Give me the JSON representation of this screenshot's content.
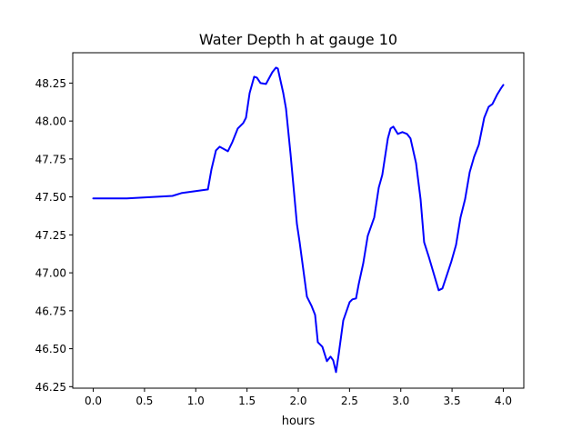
{
  "chart_data": {
    "type": "line",
    "title": "Water Depth h at gauge 10",
    "xlabel": "hours",
    "ylabel": "",
    "xlim": [
      -0.2,
      4.2
    ],
    "ylim": [
      46.24,
      48.45
    ],
    "grid": false,
    "xticks": [
      0.0,
      0.5,
      1.0,
      1.5,
      2.0,
      2.5,
      3.0,
      3.5,
      4.0
    ],
    "xtick_labels": [
      "0.0",
      "0.5",
      "1.0",
      "1.5",
      "2.0",
      "2.5",
      "3.0",
      "3.5",
      "4.0"
    ],
    "yticks": [
      46.25,
      46.5,
      46.75,
      47.0,
      47.25,
      47.5,
      47.75,
      48.0,
      48.25
    ],
    "ytick_labels": [
      "46.25",
      "46.50",
      "46.75",
      "47.00",
      "47.25",
      "47.50",
      "47.75",
      "48.00",
      "48.25"
    ],
    "series": [
      {
        "name": "h",
        "color": "#0000ff",
        "x": [
          0,
          0.328,
          0.772,
          0.86,
          1.118,
          1.153,
          1.197,
          1.233,
          1.313,
          1.357,
          1.41,
          1.463,
          1.49,
          1.525,
          1.57,
          1.596,
          1.632,
          1.685,
          1.747,
          1.783,
          1.8,
          1.854,
          1.88,
          1.925,
          1.987,
          2.013,
          2.084,
          2.129,
          2.164,
          2.191,
          2.235,
          2.279,
          2.315,
          2.341,
          2.368,
          2.395,
          2.439,
          2.501,
          2.528,
          2.563,
          2.59,
          2.634,
          2.678,
          2.741,
          2.785,
          2.82,
          2.874,
          2.9,
          2.927,
          2.971,
          3.016,
          3.06,
          3.095,
          3.149,
          3.193,
          3.228,
          3.273,
          3.317,
          3.37,
          3.406,
          3.45,
          3.494,
          3.539,
          3.583,
          3.627,
          3.672,
          3.716,
          3.761,
          3.814,
          3.858,
          3.894,
          3.938,
          3.982,
          4.0
        ],
        "y": [
          47.49,
          47.49,
          47.507,
          47.525,
          47.549,
          47.681,
          47.807,
          47.831,
          47.801,
          47.861,
          47.951,
          47.987,
          48.022,
          48.184,
          48.292,
          48.286,
          48.25,
          48.244,
          48.322,
          48.352,
          48.346,
          48.184,
          48.082,
          47.783,
          47.322,
          47.202,
          46.843,
          46.783,
          46.723,
          46.543,
          46.513,
          46.418,
          46.448,
          46.424,
          46.346,
          46.466,
          46.687,
          46.807,
          46.825,
          46.831,
          46.927,
          47.064,
          47.244,
          47.364,
          47.561,
          47.645,
          47.885,
          47.951,
          47.963,
          47.915,
          47.927,
          47.915,
          47.885,
          47.723,
          47.484,
          47.202,
          47.106,
          47.004,
          46.885,
          46.897,
          46.987,
          47.076,
          47.184,
          47.364,
          47.484,
          47.663,
          47.765,
          47.843,
          48.022,
          48.094,
          48.112,
          48.172,
          48.22,
          48.238
        ]
      }
    ]
  }
}
